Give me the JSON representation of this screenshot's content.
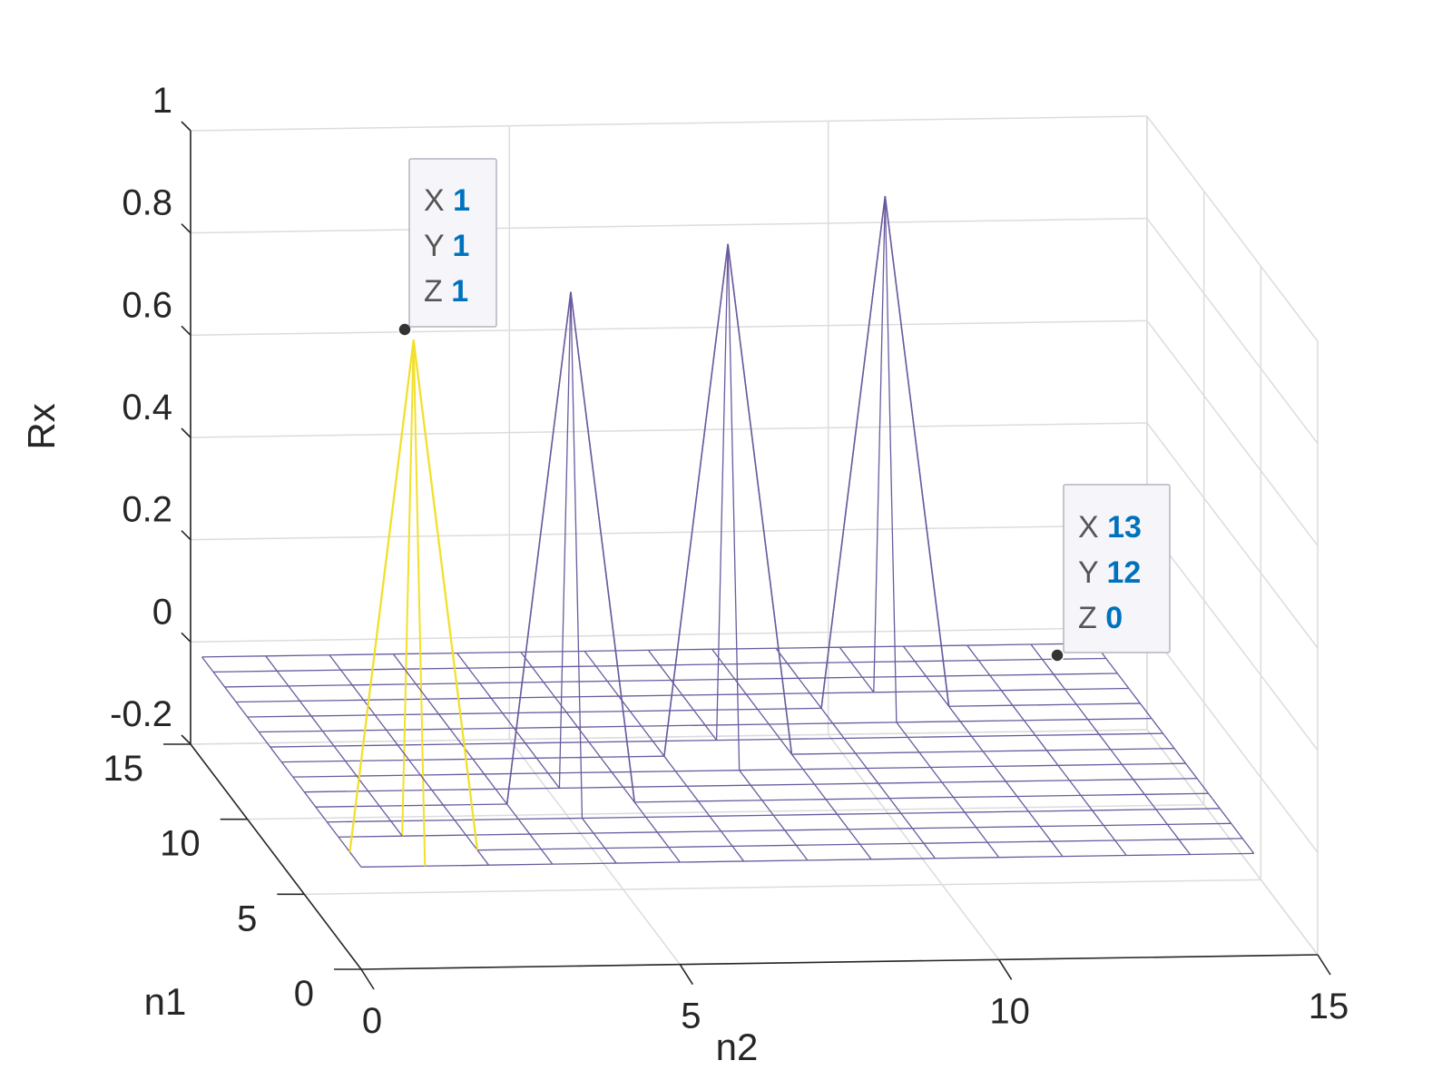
{
  "chart_data": {
    "type": "mesh",
    "xlabel": "n2",
    "ylabel": "n1",
    "zlabel": "Rx",
    "xlim": [
      0,
      15
    ],
    "ylim": [
      0,
      15
    ],
    "zlim": [
      -0.2,
      1
    ],
    "xticks": [
      "0",
      "5",
      "10",
      "15"
    ],
    "yticks": [
      "0",
      "5",
      "10",
      "15"
    ],
    "zticks": [
      "-0.2",
      "0",
      "0.2",
      "0.4",
      "0.6",
      "0.8",
      "1"
    ],
    "grid": true,
    "surface_color": "#6a5a9e",
    "highlight_color": "#f2e02a",
    "peaks": [
      {
        "x": 1,
        "y": 1,
        "z": 1,
        "highlighted": true
      },
      {
        "x": 4,
        "y": 4,
        "z": 1
      },
      {
        "x": 7,
        "y": 7,
        "z": 1
      },
      {
        "x": 10,
        "y": 10,
        "z": 1
      }
    ],
    "datatips": [
      {
        "X": "1",
        "Y": "1",
        "Z": "1"
      },
      {
        "X": "13",
        "Y": "12",
        "Z": "0"
      }
    ]
  }
}
